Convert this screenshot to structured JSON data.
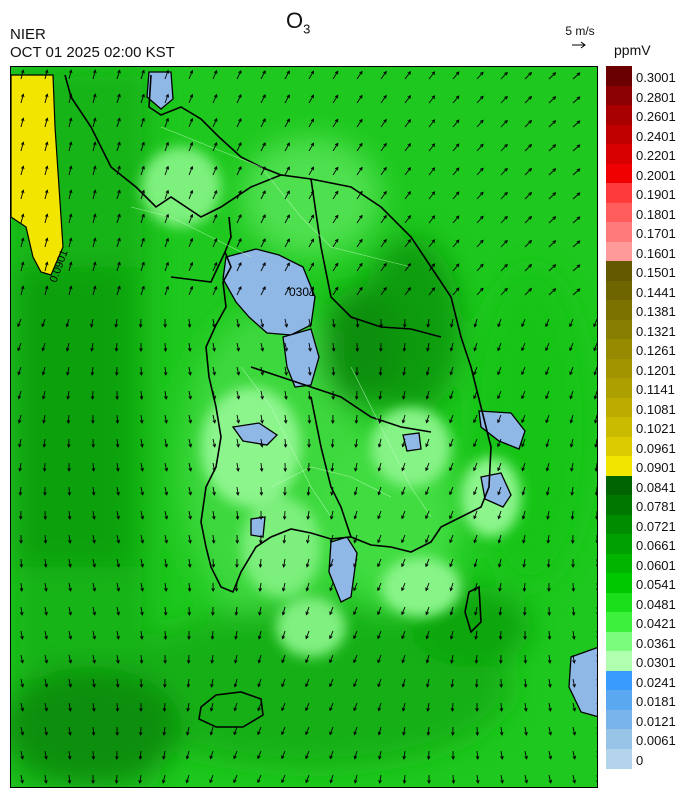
{
  "header": {
    "title_main": "O",
    "title_sub": "3",
    "agency": "NIER",
    "datetime": "OCT 01 2025 02:00 KST"
  },
  "wind_reference": {
    "label": "5 m/s"
  },
  "legend": {
    "unit": "ppmV",
    "labels": [
      "0.3001",
      "0.2801",
      "0.2601",
      "0.2401",
      "0.2201",
      "0.2001",
      "0.1901",
      "0.1801",
      "0.1701",
      "0.1601",
      "0.1501",
      "0.1441",
      "0.1381",
      "0.1321",
      "0.1261",
      "0.1201",
      "0.1141",
      "0.1081",
      "0.1021",
      "0.0961",
      "0.0901",
      "0.0841",
      "0.0781",
      "0.0721",
      "0.0661",
      "0.0601",
      "0.0541",
      "0.0481",
      "0.0421",
      "0.0361",
      "0.0301",
      "0.0241",
      "0.0181",
      "0.0121",
      "0.0061",
      "0"
    ],
    "colors": [
      "#6b0000",
      "#8b0000",
      "#a80000",
      "#c00000",
      "#d80000",
      "#f00000",
      "#ff3a3a",
      "#ff5c5c",
      "#ff7a7a",
      "#ff9a9a",
      "#635a00",
      "#6f6500",
      "#7c7200",
      "#877d00",
      "#958a00",
      "#a19400",
      "#ae9f00",
      "#bcac00",
      "#cbbb00",
      "#dccb00",
      "#f2e600",
      "#006400",
      "#007800",
      "#008c00",
      "#00a000",
      "#00b400",
      "#00c800",
      "#1ade1a",
      "#3ef03e",
      "#7cfc7c",
      "#b0ffb0",
      "#3a9bff",
      "#5aa8f0",
      "#78b4ea",
      "#96c3e6",
      "#b3d3ea"
    ]
  },
  "map": {
    "contour_labels": [
      "0301",
      "0.0901"
    ]
  }
}
